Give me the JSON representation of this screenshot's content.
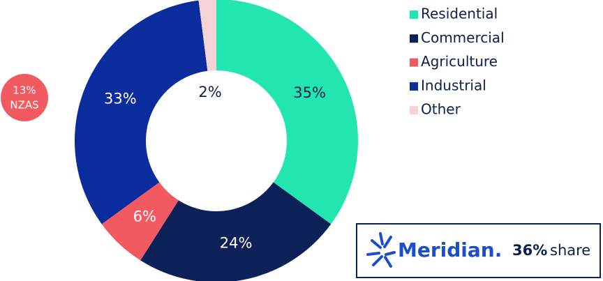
{
  "chart_data": {
    "type": "pie",
    "categories": [
      "Residential",
      "Commercial",
      "Agriculture",
      "Industrial",
      "Other"
    ],
    "values": [
      35,
      24,
      6,
      33,
      2
    ],
    "value_labels": [
      "35%",
      "24%",
      "6%",
      "33%",
      "2%"
    ],
    "colors": [
      "#23e5b0",
      "#0b2158",
      "#f05a60",
      "#0a2c9c",
      "#f3d3d7"
    ],
    "legend": "top-right",
    "annotation": {
      "lines": [
        "13%",
        "NZAS"
      ],
      "color": "#f05a60"
    },
    "badge": {
      "brand": "Meridian.",
      "share": "36%",
      "share_label": "share"
    }
  }
}
